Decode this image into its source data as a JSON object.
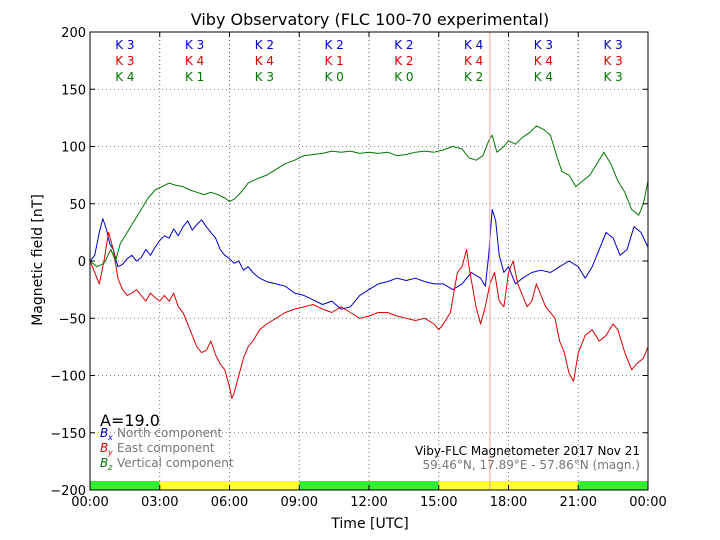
{
  "chart_data": {
    "type": "line",
    "title": "Viby Observatory (FLC 100-70 experimental)",
    "xlabel": "Time [UTC]",
    "ylabel": "Magnetic field [nT]",
    "xlim": [
      0,
      24
    ],
    "ylim": [
      -200,
      200
    ],
    "x_ticks": [
      0,
      3,
      6,
      9,
      12,
      15,
      18,
      21,
      24
    ],
    "x_tick_labels": [
      "00:00",
      "03:00",
      "06:00",
      "09:00",
      "12:00",
      "15:00",
      "18:00",
      "21:00",
      "00:00"
    ],
    "y_ticks": [
      -200,
      -150,
      -100,
      -50,
      0,
      50,
      100,
      150,
      200
    ],
    "y_tick_labels": [
      "−200",
      "−150",
      "−100",
      "−50",
      "0",
      "50",
      "100",
      "150",
      "200"
    ],
    "grid": true,
    "marker_line_x": 17.2,
    "k_rows": [
      {
        "component": "x",
        "color": "#0000cc",
        "labels": [
          "K 3",
          "K 3",
          "K 2",
          "K 2",
          "K 2",
          "K 4",
          "K 3",
          "K 3"
        ]
      },
      {
        "component": "y",
        "color": "#dd0000",
        "labels": [
          "K 3",
          "K 4",
          "K 4",
          "K 1",
          "K 2",
          "K 4",
          "K 4",
          "K 3"
        ]
      },
      {
        "component": "z",
        "color": "#007700",
        "labels": [
          "K 4",
          "K 1",
          "K 3",
          "K 0",
          "K 0",
          "K 2",
          "K 4",
          "K 3"
        ]
      }
    ],
    "activity_bar": [
      {
        "start": 0,
        "end": 3,
        "color": "#33ee33"
      },
      {
        "start": 3,
        "end": 9,
        "color": "#ffff33"
      },
      {
        "start": 9,
        "end": 15,
        "color": "#33ee33"
      },
      {
        "start": 15,
        "end": 21,
        "color": "#ffff33"
      },
      {
        "start": 21,
        "end": 24,
        "color": "#33ee33"
      }
    ],
    "series": [
      {
        "name": "North component",
        "symbol": "B",
        "subscript": "x",
        "color": "#0000cc",
        "points": [
          [
            0,
            0
          ],
          [
            0.2,
            5
          ],
          [
            0.4,
            25
          ],
          [
            0.55,
            37
          ],
          [
            0.7,
            28
          ],
          [
            0.85,
            15
          ],
          [
            1.0,
            10
          ],
          [
            1.2,
            -5
          ],
          [
            1.4,
            -3
          ],
          [
            1.6,
            2
          ],
          [
            1.8,
            5
          ],
          [
            2.0,
            0
          ],
          [
            2.2,
            3
          ],
          [
            2.4,
            10
          ],
          [
            2.6,
            5
          ],
          [
            2.8,
            12
          ],
          [
            3.0,
            18
          ],
          [
            3.2,
            22
          ],
          [
            3.4,
            20
          ],
          [
            3.6,
            28
          ],
          [
            3.8,
            22
          ],
          [
            4.0,
            30
          ],
          [
            4.2,
            35
          ],
          [
            4.4,
            27
          ],
          [
            4.6,
            32
          ],
          [
            4.8,
            36
          ],
          [
            5.0,
            30
          ],
          [
            5.2,
            25
          ],
          [
            5.4,
            20
          ],
          [
            5.6,
            10
          ],
          [
            5.8,
            5
          ],
          [
            6.0,
            2
          ],
          [
            6.2,
            -2
          ],
          [
            6.4,
            0
          ],
          [
            6.6,
            -8
          ],
          [
            6.8,
            -5
          ],
          [
            7.0,
            -10
          ],
          [
            7.3,
            -15
          ],
          [
            7.6,
            -18
          ],
          [
            8.0,
            -20
          ],
          [
            8.4,
            -22
          ],
          [
            8.8,
            -28
          ],
          [
            9.2,
            -30
          ],
          [
            9.6,
            -34
          ],
          [
            10.0,
            -38
          ],
          [
            10.4,
            -35
          ],
          [
            10.8,
            -42
          ],
          [
            11.2,
            -40
          ],
          [
            11.6,
            -30
          ],
          [
            12.0,
            -25
          ],
          [
            12.4,
            -20
          ],
          [
            12.8,
            -18
          ],
          [
            13.2,
            -15
          ],
          [
            13.6,
            -17
          ],
          [
            14.0,
            -15
          ],
          [
            14.4,
            -18
          ],
          [
            14.8,
            -20
          ],
          [
            15.2,
            -20
          ],
          [
            15.6,
            -25
          ],
          [
            16.0,
            -20
          ],
          [
            16.4,
            -10
          ],
          [
            16.8,
            -15
          ],
          [
            17.0,
            -22
          ],
          [
            17.15,
            5
          ],
          [
            17.3,
            45
          ],
          [
            17.45,
            35
          ],
          [
            17.6,
            5
          ],
          [
            17.8,
            -10
          ],
          [
            18.0,
            -5
          ],
          [
            18.3,
            -20
          ],
          [
            18.6,
            -15
          ],
          [
            19.0,
            -10
          ],
          [
            19.4,
            -8
          ],
          [
            19.8,
            -10
          ],
          [
            20.2,
            -5
          ],
          [
            20.6,
            0
          ],
          [
            21.0,
            -5
          ],
          [
            21.3,
            -15
          ],
          [
            21.6,
            -5
          ],
          [
            21.9,
            10
          ],
          [
            22.2,
            25
          ],
          [
            22.5,
            20
          ],
          [
            22.8,
            5
          ],
          [
            23.1,
            10
          ],
          [
            23.4,
            30
          ],
          [
            23.7,
            25
          ],
          [
            24.0,
            12
          ]
        ]
      },
      {
        "name": "East component",
        "symbol": "B",
        "subscript": "y",
        "color": "#dd0000",
        "points": [
          [
            0,
            0
          ],
          [
            0.2,
            -10
          ],
          [
            0.4,
            -20
          ],
          [
            0.6,
            0
          ],
          [
            0.8,
            25
          ],
          [
            1.0,
            10
          ],
          [
            1.2,
            -15
          ],
          [
            1.4,
            -25
          ],
          [
            1.6,
            -30
          ],
          [
            1.8,
            -28
          ],
          [
            2.0,
            -25
          ],
          [
            2.2,
            -30
          ],
          [
            2.4,
            -35
          ],
          [
            2.6,
            -28
          ],
          [
            2.8,
            -32
          ],
          [
            3.0,
            -35
          ],
          [
            3.2,
            -30
          ],
          [
            3.4,
            -35
          ],
          [
            3.6,
            -28
          ],
          [
            3.8,
            -40
          ],
          [
            4.0,
            -45
          ],
          [
            4.2,
            -55
          ],
          [
            4.4,
            -65
          ],
          [
            4.6,
            -75
          ],
          [
            4.8,
            -80
          ],
          [
            5.0,
            -78
          ],
          [
            5.2,
            -70
          ],
          [
            5.4,
            -82
          ],
          [
            5.6,
            -90
          ],
          [
            5.8,
            -95
          ],
          [
            6.0,
            -110
          ],
          [
            6.1,
            -120
          ],
          [
            6.2,
            -115
          ],
          [
            6.4,
            -100
          ],
          [
            6.6,
            -85
          ],
          [
            6.8,
            -75
          ],
          [
            7.0,
            -70
          ],
          [
            7.3,
            -60
          ],
          [
            7.6,
            -55
          ],
          [
            8.0,
            -50
          ],
          [
            8.4,
            -45
          ],
          [
            8.8,
            -42
          ],
          [
            9.2,
            -40
          ],
          [
            9.6,
            -38
          ],
          [
            10.0,
            -42
          ],
          [
            10.4,
            -45
          ],
          [
            10.8,
            -40
          ],
          [
            11.2,
            -45
          ],
          [
            11.6,
            -50
          ],
          [
            12.0,
            -48
          ],
          [
            12.4,
            -45
          ],
          [
            12.8,
            -45
          ],
          [
            13.2,
            -48
          ],
          [
            13.6,
            -50
          ],
          [
            14.0,
            -52
          ],
          [
            14.4,
            -50
          ],
          [
            14.8,
            -55
          ],
          [
            15.0,
            -60
          ],
          [
            15.2,
            -55
          ],
          [
            15.5,
            -45
          ],
          [
            15.8,
            -10
          ],
          [
            16.0,
            -5
          ],
          [
            16.2,
            10
          ],
          [
            16.3,
            -5
          ],
          [
            16.6,
            -40
          ],
          [
            16.8,
            -55
          ],
          [
            17.0,
            -40
          ],
          [
            17.2,
            -20
          ],
          [
            17.4,
            -10
          ],
          [
            17.6,
            -35
          ],
          [
            17.8,
            -40
          ],
          [
            18.0,
            -10
          ],
          [
            18.2,
            0
          ],
          [
            18.4,
            -20
          ],
          [
            18.6,
            -30
          ],
          [
            18.8,
            -40
          ],
          [
            19.0,
            -35
          ],
          [
            19.2,
            -20
          ],
          [
            19.4,
            -30
          ],
          [
            19.6,
            -40
          ],
          [
            19.8,
            -45
          ],
          [
            20.0,
            -50
          ],
          [
            20.2,
            -70
          ],
          [
            20.4,
            -80
          ],
          [
            20.6,
            -98
          ],
          [
            20.8,
            -105
          ],
          [
            21.0,
            -80
          ],
          [
            21.3,
            -65
          ],
          [
            21.6,
            -60
          ],
          [
            21.9,
            -70
          ],
          [
            22.2,
            -65
          ],
          [
            22.5,
            -55
          ],
          [
            22.7,
            -60
          ],
          [
            23.0,
            -80
          ],
          [
            23.3,
            -95
          ],
          [
            23.5,
            -90
          ],
          [
            23.8,
            -85
          ],
          [
            24.0,
            -75
          ]
        ]
      },
      {
        "name": "Vertical component",
        "symbol": "B",
        "subscript": "z",
        "color": "#007700",
        "points": [
          [
            0,
            0
          ],
          [
            0.3,
            -5
          ],
          [
            0.6,
            -2
          ],
          [
            0.9,
            10
          ],
          [
            1.1,
            0
          ],
          [
            1.3,
            15
          ],
          [
            1.6,
            25
          ],
          [
            1.9,
            35
          ],
          [
            2.2,
            45
          ],
          [
            2.5,
            55
          ],
          [
            2.8,
            62
          ],
          [
            3.1,
            65
          ],
          [
            3.4,
            68
          ],
          [
            3.7,
            66
          ],
          [
            4.0,
            65
          ],
          [
            4.3,
            62
          ],
          [
            4.6,
            60
          ],
          [
            4.9,
            58
          ],
          [
            5.2,
            60
          ],
          [
            5.5,
            58
          ],
          [
            5.8,
            55
          ],
          [
            6.0,
            52
          ],
          [
            6.2,
            54
          ],
          [
            6.5,
            60
          ],
          [
            6.8,
            68
          ],
          [
            7.2,
            72
          ],
          [
            7.6,
            75
          ],
          [
            8.0,
            80
          ],
          [
            8.4,
            85
          ],
          [
            8.8,
            88
          ],
          [
            9.2,
            92
          ],
          [
            9.6,
            93
          ],
          [
            10.0,
            94
          ],
          [
            10.4,
            96
          ],
          [
            10.8,
            95
          ],
          [
            11.2,
            96
          ],
          [
            11.6,
            94
          ],
          [
            12.0,
            95
          ],
          [
            12.4,
            94
          ],
          [
            12.8,
            95
          ],
          [
            13.2,
            92
          ],
          [
            13.6,
            93
          ],
          [
            14.0,
            95
          ],
          [
            14.4,
            96
          ],
          [
            14.8,
            95
          ],
          [
            15.2,
            97
          ],
          [
            15.6,
            100
          ],
          [
            16.0,
            98
          ],
          [
            16.3,
            90
          ],
          [
            16.6,
            88
          ],
          [
            16.9,
            92
          ],
          [
            17.15,
            105
          ],
          [
            17.3,
            110
          ],
          [
            17.5,
            95
          ],
          [
            17.8,
            100
          ],
          [
            18.0,
            105
          ],
          [
            18.3,
            102
          ],
          [
            18.6,
            108
          ],
          [
            18.9,
            112
          ],
          [
            19.2,
            118
          ],
          [
            19.5,
            115
          ],
          [
            19.8,
            110
          ],
          [
            20.1,
            90
          ],
          [
            20.3,
            78
          ],
          [
            20.6,
            75
          ],
          [
            20.9,
            65
          ],
          [
            21.2,
            70
          ],
          [
            21.5,
            75
          ],
          [
            21.8,
            85
          ],
          [
            22.1,
            95
          ],
          [
            22.4,
            85
          ],
          [
            22.7,
            70
          ],
          [
            23.0,
            60
          ],
          [
            23.3,
            45
          ],
          [
            23.6,
            40
          ],
          [
            23.8,
            50
          ],
          [
            24.0,
            70
          ]
        ]
      }
    ],
    "annotations": {
      "index": "A=19.0",
      "station": "Viby-FLC Magnetometer 2017 Nov 21",
      "coords": "59.46°N, 17.89°E - 57.86°N (magn.)"
    }
  }
}
